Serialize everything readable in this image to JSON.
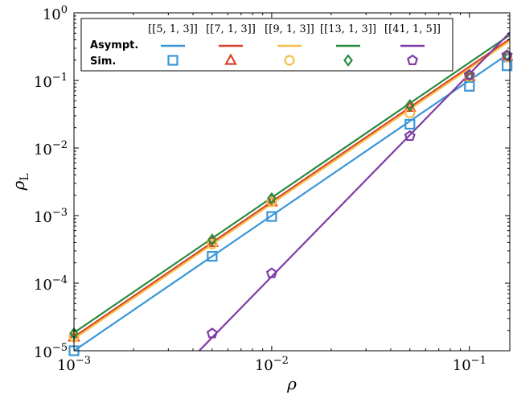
{
  "chart_data": {
    "type": "line",
    "xlabel": "ρ",
    "ylabel": "ρL",
    "ylabel_sub": "L",
    "xscale": "log",
    "yscale": "log",
    "xlim": [
      0.001,
      0.16
    ],
    "ylim": [
      1e-05,
      1
    ],
    "xticks": [
      {
        "value": 0.001,
        "base": "10",
        "exp": "−3"
      },
      {
        "value": 0.01,
        "base": "10",
        "exp": "−2"
      },
      {
        "value": 0.1,
        "base": "10",
        "exp": "−1"
      }
    ],
    "yticks": [
      {
        "value": 1e-05,
        "base": "10",
        "exp": "−5"
      },
      {
        "value": 0.0001,
        "base": "10",
        "exp": "−4"
      },
      {
        "value": 0.001,
        "base": "10",
        "exp": "−3"
      },
      {
        "value": 0.01,
        "base": "10",
        "exp": "−2"
      },
      {
        "value": 0.1,
        "base": "10",
        "exp": "−1"
      },
      {
        "value": 1,
        "base": "10",
        "exp": "0"
      }
    ],
    "legend": {
      "position": "top-left",
      "row_labels": [
        "Asympt.",
        "Sim."
      ]
    },
    "series": [
      {
        "name": "[[5, 1, 3]]",
        "color": "#3a96d8",
        "marker": "square",
        "asymptotic": [
          [
            0.001,
            1e-05
          ],
          [
            0.16,
            0.256
          ]
        ],
        "simulated": [
          [
            0.001,
            1e-05
          ],
          [
            0.005,
            0.00025
          ],
          [
            0.01,
            0.00097
          ],
          [
            0.05,
            0.0225
          ],
          [
            0.1,
            0.082
          ],
          [
            0.155,
            0.165
          ]
        ]
      },
      {
        "name": "[[7, 1, 3]]",
        "color": "#d9412b",
        "marker": "triangle",
        "asymptotic": [
          [
            0.001,
            1.6e-05
          ],
          [
            0.16,
            0.41
          ]
        ],
        "simulated": [
          [
            0.001,
            1.6e-05
          ],
          [
            0.005,
            0.0004
          ],
          [
            0.01,
            0.0016
          ],
          [
            0.05,
            0.04
          ],
          [
            0.1,
            0.115
          ],
          [
            0.155,
            0.23
          ]
        ]
      },
      {
        "name": "[[9, 1, 3]]",
        "color": "#f5bf4a",
        "marker": "circle",
        "asymptotic": [
          [
            0.001,
            1.5e-05
          ],
          [
            0.16,
            0.384
          ]
        ],
        "simulated": [
          [
            0.001,
            1.6e-05
          ],
          [
            0.005,
            0.00038
          ],
          [
            0.01,
            0.0016
          ],
          [
            0.05,
            0.033
          ],
          [
            0.1,
            0.115
          ],
          [
            0.155,
            0.225
          ]
        ]
      },
      {
        "name": "[[13, 1, 3]]",
        "color": "#2a8b3f",
        "marker": "diamond",
        "asymptotic": [
          [
            0.001,
            1.85e-05
          ],
          [
            0.16,
            0.47
          ]
        ],
        "simulated": [
          [
            0.001,
            1.8e-05
          ],
          [
            0.005,
            0.00044
          ],
          [
            0.01,
            0.0018
          ],
          [
            0.05,
            0.043
          ],
          [
            0.1,
            0.12
          ],
          [
            0.155,
            0.235
          ]
        ]
      },
      {
        "name": "[[41, 1, 5]]",
        "color": "#7f3ba6",
        "marker": "pentagon",
        "asymptotic": [
          [
            0.0043,
            1e-05
          ],
          [
            0.16,
            0.51
          ]
        ],
        "simulated": [
          [
            0.005,
            1.8e-05
          ],
          [
            0.01,
            0.00014
          ],
          [
            0.05,
            0.015
          ],
          [
            0.1,
            0.12
          ],
          [
            0.155,
            0.235
          ]
        ]
      }
    ]
  }
}
